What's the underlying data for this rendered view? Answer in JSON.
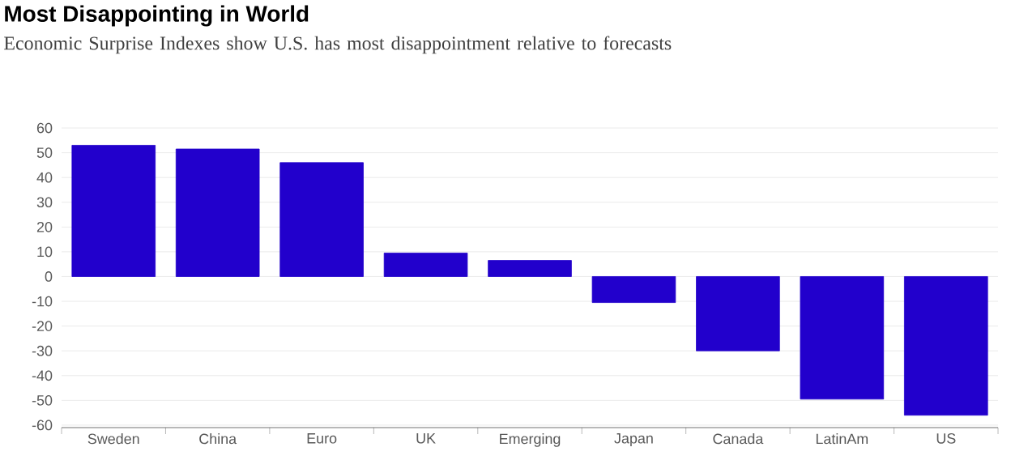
{
  "chart_data": {
    "type": "bar",
    "title": "Most Disappointing in World",
    "subtitle": "Economic Surprise Indexes show U.S. has most disappointment relative to forecasts",
    "categories": [
      "Sweden",
      "China",
      "Euro",
      "UK",
      "Emerging",
      "Japan",
      "Canada",
      "LatinAm",
      "US"
    ],
    "values": [
      53,
      51.5,
      46,
      9.5,
      6.5,
      -10.5,
      -30,
      -49.5,
      -56
    ],
    "color": "#2200cc",
    "ylim": [
      -61,
      60
    ],
    "yticks": [
      -60,
      -50,
      -40,
      -30,
      -20,
      -10,
      0,
      10,
      20,
      30,
      40,
      50,
      60
    ],
    "grid": "y"
  }
}
